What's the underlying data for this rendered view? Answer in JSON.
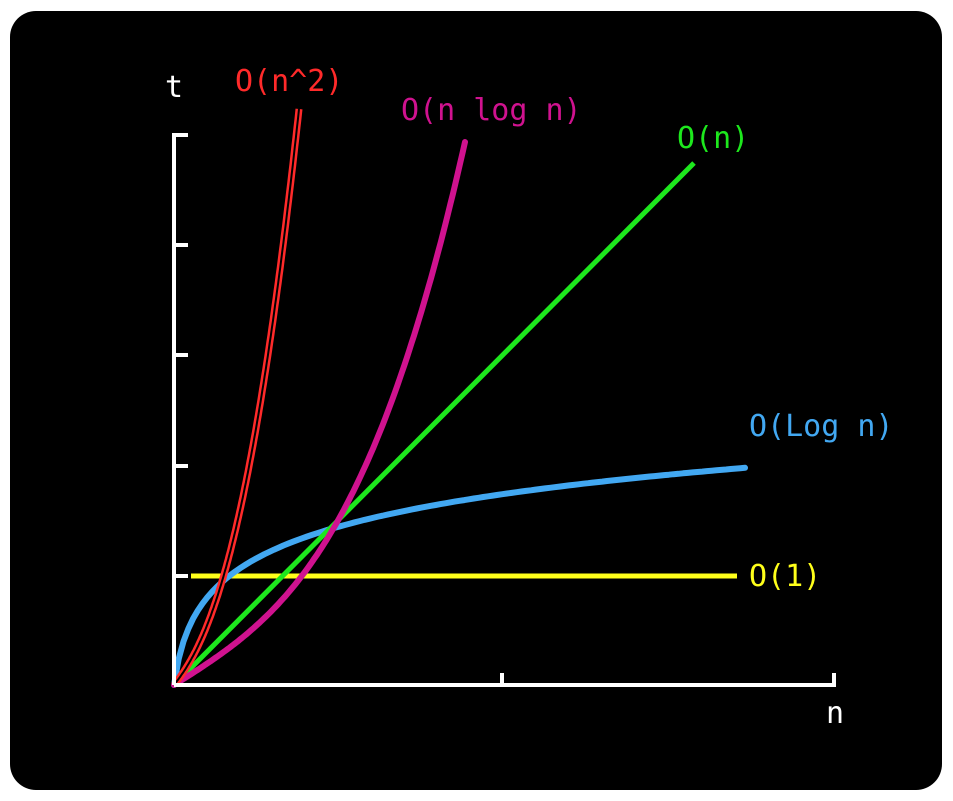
{
  "chart_data": {
    "type": "line",
    "xlabel": "n",
    "ylabel": "t",
    "series": [
      {
        "name": "O(n^2)",
        "color": "#ff2a2a",
        "style": "double"
      },
      {
        "name": "O(n log n)",
        "color": "#d0128f"
      },
      {
        "name": "O(n)",
        "color": "#1de81d"
      },
      {
        "name": "O(Log n)",
        "color": "#42a8f2"
      },
      {
        "name": "O(1)",
        "color": "#ffff1a"
      }
    ],
    "axes_color": "#ffffff",
    "grid": false,
    "legend": "labels at line ends"
  }
}
